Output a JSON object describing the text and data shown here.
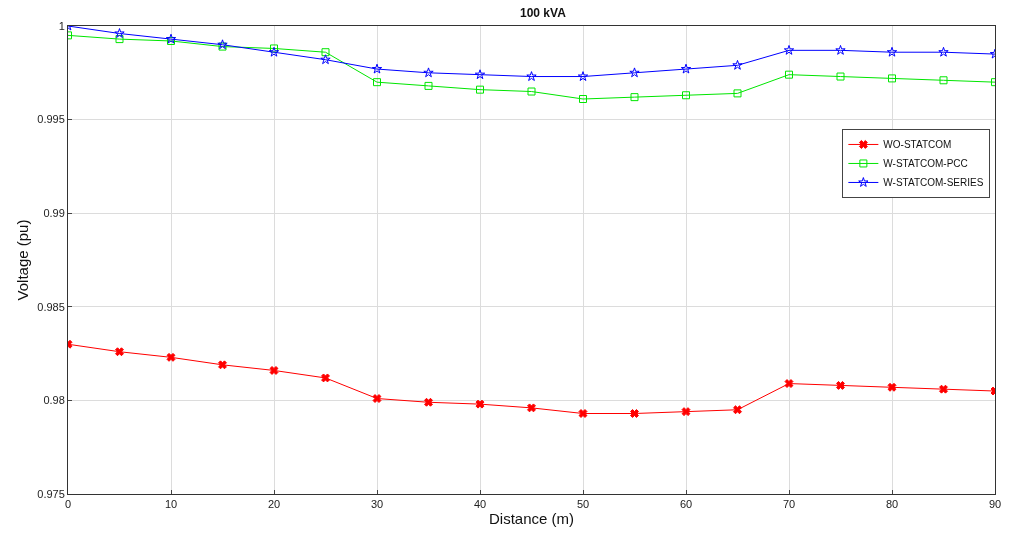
{
  "chart_data": {
    "type": "line",
    "title": "100 kVA",
    "xlabel": "Distance (m)",
    "ylabel": "Voltage (pu)",
    "x": [
      0,
      5,
      10,
      15,
      20,
      25,
      30,
      35,
      40,
      45,
      50,
      55,
      60,
      65,
      70,
      75,
      80,
      85,
      90
    ],
    "series": [
      {
        "name": "WO-STATCOM",
        "color": "#ff0000",
        "marker": "cross",
        "values": [
          0.983,
          0.9826,
          0.9823,
          0.9819,
          0.9816,
          0.9812,
          0.9801,
          0.9799,
          0.9798,
          0.9796,
          0.9793,
          0.9793,
          0.9794,
          0.9795,
          0.9809,
          0.9808,
          0.9807,
          0.9806,
          0.9805
        ]
      },
      {
        "name": "W-STATCOM-PCC",
        "color": "#00e600",
        "marker": "square",
        "values": [
          0.9995,
          0.9993,
          0.9992,
          0.9989,
          0.9988,
          0.9986,
          0.997,
          0.9968,
          0.9966,
          0.9965,
          0.9961,
          0.9962,
          0.9963,
          0.9964,
          0.9974,
          0.9973,
          0.9972,
          0.9971,
          0.997
        ]
      },
      {
        "name": "W-STATCOM-SERIES",
        "color": "#0000ff",
        "marker": "star",
        "values": [
          1.0,
          0.9996,
          0.9993,
          0.999,
          0.9986,
          0.9982,
          0.9977,
          0.9975,
          0.9974,
          0.9973,
          0.9973,
          0.9975,
          0.9977,
          0.9979,
          0.9987,
          0.9987,
          0.9986,
          0.9986,
          0.9985
        ]
      }
    ],
    "xlim": [
      0,
      90
    ],
    "xticks": [
      0,
      10,
      20,
      30,
      40,
      50,
      60,
      70,
      80,
      90
    ],
    "ylim": [
      0.975,
      1
    ],
    "yticks": [
      0.975,
      0.98,
      0.985,
      0.99,
      0.995,
      1
    ],
    "grid": true,
    "legend": "top right",
    "line_style": "solid"
  }
}
